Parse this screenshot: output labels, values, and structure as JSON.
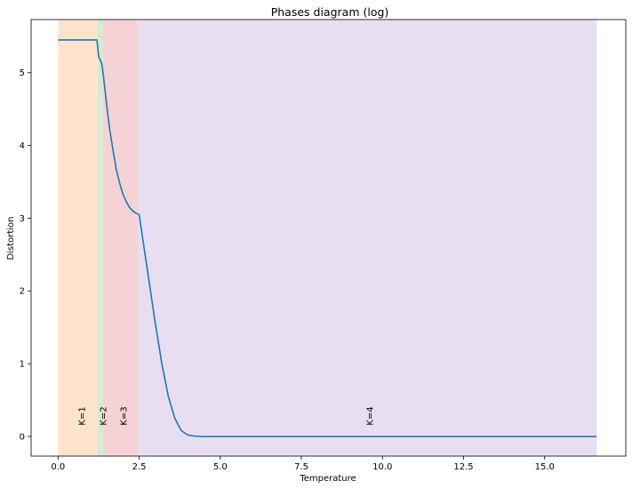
{
  "chart_data": {
    "type": "line",
    "title": "Phases diagram (log)",
    "xlabel": "Temperature",
    "ylabel": "Distortion",
    "xlim": [
      -0.83,
      17.5
    ],
    "ylim": [
      -0.27,
      5.73
    ],
    "xticks": [
      0.0,
      2.5,
      5.0,
      7.5,
      10.0,
      12.5,
      15.0
    ],
    "xtick_labels": [
      "0.0",
      "2.5",
      "5.0",
      "7.5",
      "10.0",
      "12.5",
      "15.0"
    ],
    "yticks": [
      0,
      1,
      2,
      3,
      4,
      5
    ],
    "ytick_labels": [
      "0",
      "1",
      "2",
      "3",
      "4",
      "5"
    ],
    "grid": false,
    "line_color": "#1f77b4",
    "series": [
      {
        "x": [
          0.0,
          0.5,
          1.0,
          1.2,
          1.25,
          1.3,
          1.35,
          1.4,
          1.5,
          1.6,
          1.7,
          1.8,
          1.9,
          2.0,
          2.1,
          2.2,
          2.3,
          2.4,
          2.5,
          2.6,
          2.8,
          3.0,
          3.2,
          3.4,
          3.6,
          3.8,
          4.0,
          4.2,
          4.5,
          5.0,
          7.5,
          10.0,
          12.5,
          15.0,
          16.6
        ],
        "y": [
          5.45,
          5.45,
          5.45,
          5.45,
          5.22,
          5.18,
          5.12,
          4.95,
          4.55,
          4.2,
          3.92,
          3.66,
          3.48,
          3.33,
          3.23,
          3.15,
          3.1,
          3.07,
          3.05,
          2.75,
          2.15,
          1.55,
          1.0,
          0.55,
          0.25,
          0.08,
          0.02,
          0.005,
          0.0,
          0.0,
          0.0,
          0.0,
          0.0,
          0.0,
          0.0
        ]
      }
    ],
    "phases": [
      {
        "label": "K=1",
        "x0": 0.0,
        "x1": 1.22,
        "color": "#ffe4cc",
        "label_x": 0.72,
        "label_y": 0.15
      },
      {
        "label": "K=2",
        "x0": 1.22,
        "x1": 1.38,
        "color": "#d2ebd2",
        "label_x": 1.38,
        "label_y": 0.15
      },
      {
        "label": "K=3",
        "x0": 1.38,
        "x1": 2.47,
        "color": "#f5d3d5",
        "label_x": 2.0,
        "label_y": 0.15
      },
      {
        "label": "K=4",
        "x0": 2.47,
        "x1": 16.6,
        "color": "#e7dff1",
        "label_x": 9.6,
        "label_y": 0.15
      }
    ]
  }
}
